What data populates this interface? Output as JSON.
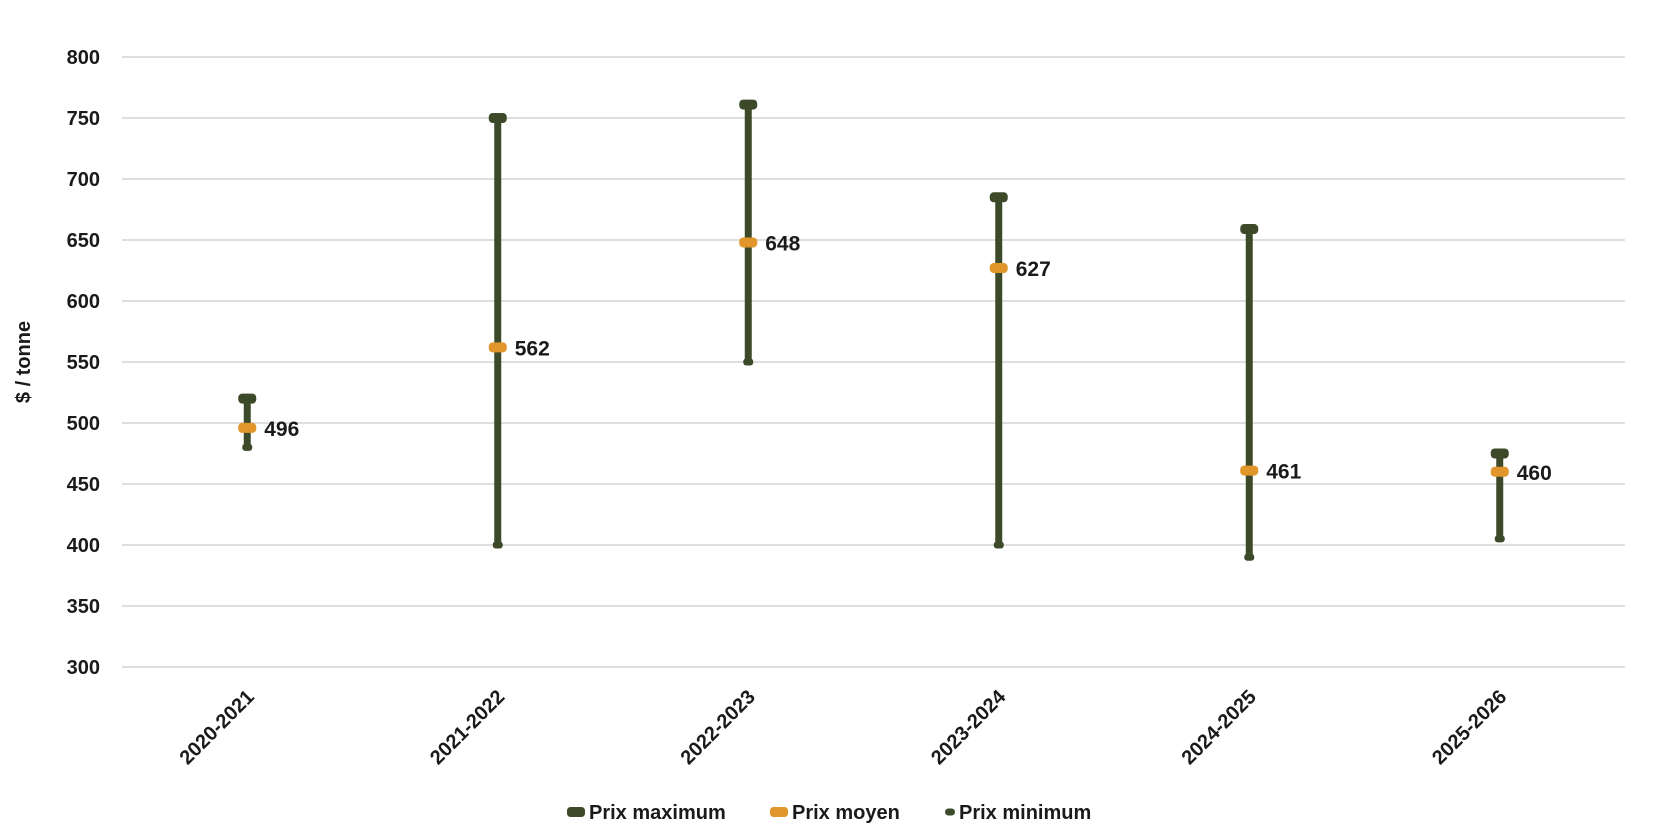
{
  "chart_data": {
    "type": "range",
    "categories": [
      "2020-2021",
      "2021-2022",
      "2022-2023",
      "2023-2024",
      "2024-2025",
      "2025-2026"
    ],
    "series": [
      {
        "name": "Prix maximum",
        "values": [
          520,
          750,
          761,
          685,
          659,
          475
        ],
        "color": "#3d4a2a"
      },
      {
        "name": "Prix moyen",
        "values": [
          496,
          562,
          648,
          627,
          461,
          460
        ],
        "color": "#e0962b"
      },
      {
        "name": "Prix minimum",
        "values": [
          480,
          400,
          550,
          400,
          390,
          405
        ],
        "color": "#3d4a2a"
      }
    ],
    "data_labels": [
      "496",
      "562",
      "648",
      "627",
      "461",
      "460"
    ],
    "ylabel": "$ / tonne",
    "ylim": [
      300,
      800
    ],
    "yticks": [
      300,
      350,
      400,
      450,
      500,
      550,
      600,
      650,
      700,
      750,
      800
    ],
    "grid": "horizontal",
    "legend_position": "bottom"
  }
}
